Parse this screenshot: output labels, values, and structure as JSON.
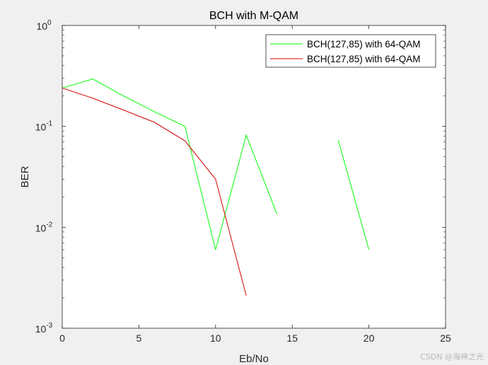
{
  "watermark": "CSDN @海神之光",
  "chart_data": {
    "type": "line",
    "title": "BCH with M-QAM",
    "xlabel": "Eb/No",
    "ylabel": "BER",
    "xlim": [
      0,
      25
    ],
    "ylim": [
      0.001,
      1
    ],
    "yscale": "log",
    "x_ticks": [
      "0",
      "5",
      "10",
      "15",
      "20",
      "25"
    ],
    "y_ticks": [
      {
        "base": "10",
        "exp": "0"
      },
      {
        "base": "10",
        "exp": "-1"
      },
      {
        "base": "10",
        "exp": "-2"
      },
      {
        "base": "10",
        "exp": "-3"
      }
    ],
    "grid": false,
    "legend_position": "top-right",
    "series": [
      {
        "name": "BCH(127,85) with 64-QAM",
        "color": "#00ff00",
        "x": [
          0,
          2,
          4,
          6,
          8,
          10,
          12,
          14,
          16,
          18,
          20
        ],
        "y": [
          0.24,
          0.295,
          0.2,
          0.14,
          0.1,
          0.006,
          0.082,
          0.0135,
          null,
          0.073,
          0.006
        ]
      },
      {
        "name": "BCH(127,85) with 64-QAM",
        "color": "#d40000",
        "x": [
          0,
          2,
          4,
          6,
          8,
          10,
          12
        ],
        "y": [
          0.24,
          0.19,
          0.145,
          0.11,
          0.072,
          0.03,
          0.0021
        ]
      }
    ]
  }
}
